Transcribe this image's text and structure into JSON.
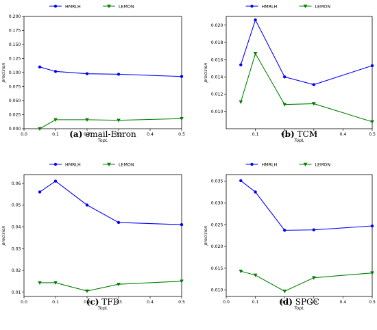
{
  "chart_data": [
    {
      "type": "line",
      "caption_tag": "(a)",
      "caption_text": "email-Enron",
      "xlabel": "TopL",
      "ylabel": "precision",
      "xlim": [
        0.0,
        0.5
      ],
      "ylim": [
        0.0,
        0.2
      ],
      "xticks": [
        "0.0",
        "0.1",
        "0.2",
        "0.3",
        "0.4",
        "0.5"
      ],
      "yticks": [
        "0.000",
        "0.025",
        "0.050",
        "0.075",
        "0.100",
        "0.125",
        "0.150",
        "0.175",
        "0.200"
      ],
      "x": [
        0.05,
        0.1,
        0.2,
        0.3,
        0.5
      ],
      "legend_position": "top-center",
      "series": [
        {
          "name": "HMRLH",
          "color": "#0000ff",
          "marker": "circle",
          "values": [
            0.11,
            0.102,
            0.098,
            0.097,
            0.093
          ]
        },
        {
          "name": "LEMON",
          "color": "#008000",
          "marker": "triangle-down",
          "values": [
            0.0,
            0.016,
            0.016,
            0.015,
            0.018
          ]
        }
      ]
    },
    {
      "type": "line",
      "caption_tag": "(b)",
      "caption_text": "TCM",
      "xlabel": "TopL",
      "ylabel": "precision",
      "xlim": [
        0.0,
        0.5
      ],
      "ylim": [
        0.008,
        0.021
      ],
      "xticks": [
        "0.1",
        "0.2",
        "0.3",
        "0.4",
        "0.5"
      ],
      "yticks": [
        "0.010",
        "0.012",
        "0.014",
        "0.016",
        "0.018",
        "0.020"
      ],
      "x": [
        0.05,
        0.1,
        0.2,
        0.3,
        0.5
      ],
      "legend_position": "top-center",
      "series": [
        {
          "name": "HMRLH",
          "color": "#0000ff",
          "marker": "circle",
          "values": [
            0.0154,
            0.0206,
            0.014,
            0.0131,
            0.0153
          ]
        },
        {
          "name": "LEMON",
          "color": "#008000",
          "marker": "triangle-down",
          "values": [
            0.0111,
            0.0167,
            0.0108,
            0.0109,
            0.0088
          ]
        }
      ]
    },
    {
      "type": "line",
      "caption_tag": "(c)",
      "caption_text": "TFD",
      "xlabel": "TopL",
      "ylabel": "precision",
      "xlim": [
        0.0,
        0.5
      ],
      "ylim": [
        0.008,
        0.064
      ],
      "xticks": [
        "0.0",
        "0.1",
        "0.2",
        "0.3",
        "0.4",
        "0.5"
      ],
      "yticks": [
        "0.01",
        "0.02",
        "0.03",
        "0.04",
        "0.05",
        "0.06"
      ],
      "x": [
        0.05,
        0.1,
        0.2,
        0.3,
        0.5
      ],
      "legend_position": "top-center",
      "series": [
        {
          "name": "HMRLH",
          "color": "#0000ff",
          "marker": "circle",
          "values": [
            0.056,
            0.061,
            0.05,
            0.042,
            0.041
          ]
        },
        {
          "name": "LEMON",
          "color": "#008000",
          "marker": "triangle-down",
          "values": [
            0.0143,
            0.0143,
            0.0105,
            0.0136,
            0.015
          ]
        }
      ]
    },
    {
      "type": "line",
      "caption_tag": "(d)",
      "caption_text": "SPGC",
      "xlabel": "TopL",
      "ylabel": "precision",
      "xlim": [
        0.0,
        0.5
      ],
      "ylim": [
        0.0085,
        0.0365
      ],
      "xticks": [
        "0.0",
        "0.1",
        "0.2",
        "0.3",
        "0.4",
        "0.5"
      ],
      "yticks": [
        "0.010",
        "0.015",
        "0.020",
        "0.025",
        "0.030",
        "0.035"
      ],
      "x": [
        0.05,
        0.1,
        0.2,
        0.3,
        0.5
      ],
      "legend_position": "top-center",
      "series": [
        {
          "name": "HMRLH",
          "color": "#0000ff",
          "marker": "circle",
          "values": [
            0.0351,
            0.0325,
            0.0237,
            0.0238,
            0.0247
          ]
        },
        {
          "name": "LEMON",
          "color": "#008000",
          "marker": "triangle-down",
          "values": [
            0.0143,
            0.0134,
            0.0097,
            0.0128,
            0.0139
          ]
        }
      ]
    }
  ]
}
